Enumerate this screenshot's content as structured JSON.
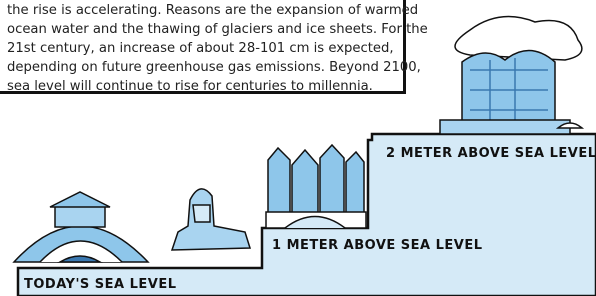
{
  "text_box": {
    "lines": [
      "the rise is accelerating. Reasons are the expansion of warmed",
      "ocean water and the thawing of glaciers and ice sheets. For the",
      "21st century, an increase of about 28-101 cm is expected,",
      "depending on future greenhouse gas emissions. Beyond 2100,",
      "sea level will continue to rise for centuries to millennia."
    ]
  },
  "labels": {
    "today": "TODAY'S SEA LEVEL",
    "one_meter": "1 METER ABOVE SEA LEVEL",
    "two_meter": "2 METER ABOVE SEA LEVEL"
  }
}
